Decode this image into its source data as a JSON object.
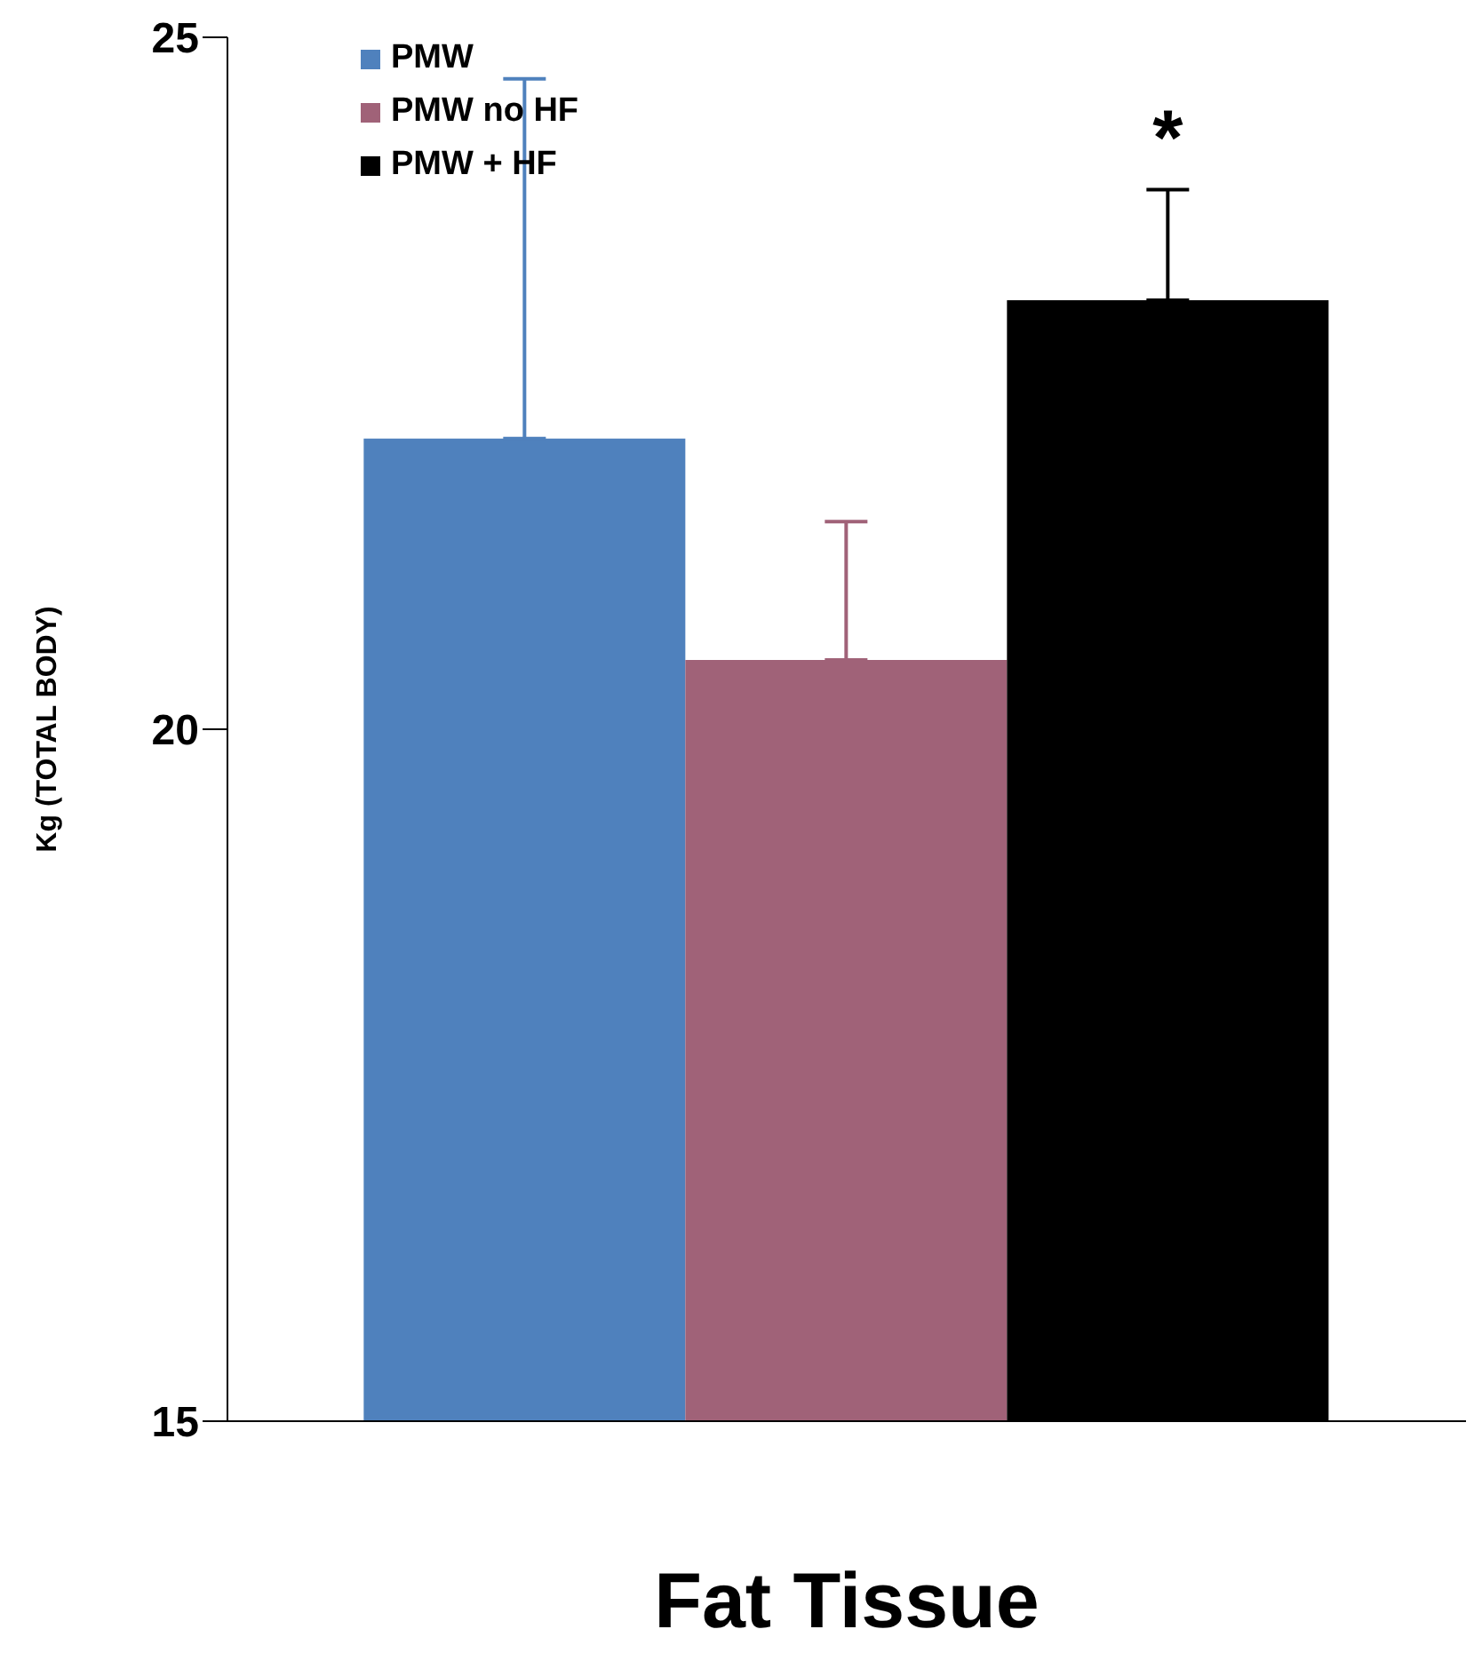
{
  "chart_data": {
    "type": "bar",
    "xlabel": "Fat Tissue",
    "ylabel": "Kg (TOTAL BODY)",
    "categories": [
      null
    ],
    "series": [
      {
        "name": "PMW",
        "color": "#4f81bd",
        "values": [
          22.1
        ],
        "errors": [
          [
            22.1,
            24.7
          ]
        ]
      },
      {
        "name": "PMW no HF",
        "color": "#a06278",
        "values": [
          20.5
        ],
        "errors": [
          [
            20.5,
            21.5
          ]
        ]
      },
      {
        "name": "PMW + HF",
        "color": "#000000",
        "values": [
          23.1
        ],
        "errors": [
          [
            23.1,
            23.9
          ]
        ]
      }
    ],
    "ylim": [
      15,
      25
    ],
    "yticks": [
      15,
      20,
      25
    ],
    "grid": false,
    "legend": "top left",
    "annotations": [
      "*"
    ]
  }
}
